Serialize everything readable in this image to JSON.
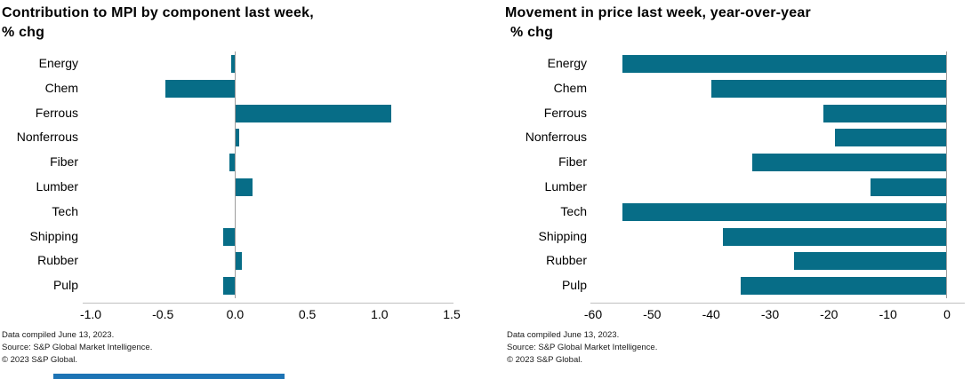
{
  "colors": {
    "bar": "#076d87",
    "axis_line": "#bfbfbf",
    "zero_line": "#9d9d9d",
    "accent_strip": "#1d74b5"
  },
  "chart_data": [
    {
      "type": "bar",
      "orientation": "horizontal",
      "title": "Contribution to MPI by component last week, % chg",
      "title_lines": [
        "Contribution to MPI by component last week,",
        "% chg"
      ],
      "categories": [
        "Energy",
        "Chem",
        "Ferrous",
        "Nonferrous",
        "Fiber",
        "Lumber",
        "Tech",
        "Shipping",
        "Rubber",
        "Pulp"
      ],
      "values": [
        -0.03,
        -0.48,
        1.08,
        0.03,
        -0.04,
        0.12,
        0,
        -0.08,
        0.05,
        -0.08
      ],
      "xlim": [
        -1.0,
        1.5
      ],
      "xticks": [
        "-1.0",
        "-0.5",
        "0.0",
        "0.5",
        "1.0",
        "1.5"
      ],
      "xlabel": "",
      "ylabel": "",
      "grid": false,
      "legend": "none",
      "bar_color": "#076d87"
    },
    {
      "type": "bar",
      "orientation": "horizontal",
      "title": "Movement in price last week, year-over-year % chg",
      "title_lines": [
        "Movement in price last week, year-over-year",
        "% chg"
      ],
      "categories": [
        "Energy",
        "Chem",
        "Ferrous",
        "Nonferrous",
        "Fiber",
        "Lumber",
        "Tech",
        "Shipping",
        "Rubber",
        "Pulp"
      ],
      "values": [
        -55,
        -40,
        -21,
        -19,
        -33,
        -13,
        -55,
        -38,
        -26,
        -35
      ],
      "xlim": [
        -60,
        0
      ],
      "xticks": [
        "-60",
        "-50",
        "-40",
        "-30",
        "-20",
        "-10",
        "0"
      ],
      "xlabel": "",
      "ylabel": "",
      "grid": false,
      "legend": "none",
      "bar_color": "#076d87"
    }
  ],
  "footers": {
    "left": [
      "Data compiled June 13, 2023.",
      "Source: S&P Global Market Intelligence.",
      "© 2023 S&P Global."
    ],
    "right": [
      "Data compiled June 13, 2023.",
      "Source: S&P Global Market Intelligence.",
      "© 2023 S&P Global."
    ]
  }
}
